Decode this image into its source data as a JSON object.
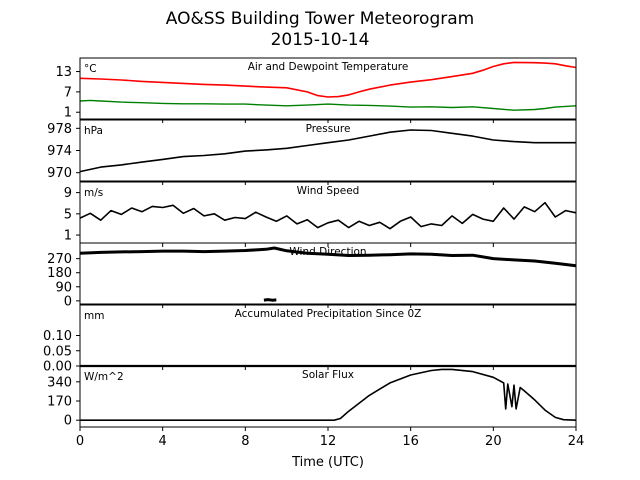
{
  "chart_data": {
    "type": "line",
    "title": "AO&SS Building Tower Meteorogram",
    "subtitle": "2015-10-14",
    "xlabel": "Time (UTC)",
    "xlim": [
      0,
      24
    ],
    "xticks": [
      0,
      4,
      8,
      12,
      16,
      20,
      24
    ],
    "panels": [
      {
        "title": "Air and Dewpoint Temperature",
        "unit": "°C",
        "ylim": [
          -1,
          17
        ],
        "yticks": [
          1,
          7,
          13
        ],
        "series": [
          {
            "color": "#ff0000",
            "width": 1.6,
            "x": [
              0,
              1,
              2,
              3,
              4,
              5,
              6,
              7,
              8,
              9,
              10,
              11,
              11.5,
              12,
              12.5,
              13,
              13.5,
              14,
              15,
              16,
              17,
              18,
              19,
              19.5,
              20,
              20.5,
              21,
              22,
              22.5,
              23,
              23.5,
              24
            ],
            "y": [
              11,
              10.8,
              10.5,
              10.1,
              9.8,
              9.5,
              9.2,
              9,
              8.7,
              8.4,
              8.2,
              7,
              5.9,
              5.5,
              5.6,
              6.1,
              7,
              7.8,
              9,
              9.9,
              10.6,
              11.5,
              12.5,
              13.4,
              14.5,
              15.3,
              15.7,
              15.6,
              15.5,
              15.3,
              14.7,
              14.2
            ]
          },
          {
            "color": "#008000",
            "width": 1.4,
            "x": [
              0,
              0.5,
              1,
              2,
              3,
              4,
              5,
              6,
              7,
              8,
              9,
              10,
              11,
              12,
              13,
              14,
              15,
              16,
              17,
              18,
              19,
              20,
              21,
              22,
              22.5,
              23,
              24
            ],
            "y": [
              4.3,
              4.5,
              4.3,
              4,
              3.8,
              3.6,
              3.5,
              3.5,
              3.4,
              3.4,
              3.1,
              2.9,
              3.1,
              3.4,
              3.1,
              3,
              2.8,
              2.5,
              2.6,
              2.4,
              2.6,
              2.1,
              1.6,
              1.8,
              2.1,
              2.5,
              2.9
            ]
          }
        ]
      },
      {
        "title": "Pressure",
        "unit": "hPa",
        "ylim": [
          968.5,
          979.5
        ],
        "yticks": [
          970,
          974,
          978
        ],
        "series": [
          {
            "color": "#000000",
            "width": 1.6,
            "x": [
              0,
              1,
              2,
              3,
              4,
              5,
              6,
              7,
              8,
              9,
              10,
              11,
              12,
              13,
              14,
              15,
              16,
              17,
              18,
              19,
              20,
              21,
              22,
              23,
              24
            ],
            "y": [
              970.2,
              971,
              971.4,
              971.9,
              972.4,
              972.9,
              973.1,
              973.4,
              973.9,
              974.1,
              974.4,
              974.9,
              975.4,
              975.9,
              976.6,
              977.3,
              977.7,
              977.6,
              977.1,
              976.6,
              975.9,
              975.6,
              975.4,
              975.4,
              975.4
            ]
          }
        ]
      },
      {
        "title": "Wind Speed",
        "unit": "m/s",
        "ylim": [
          -0.5,
          11
        ],
        "yticks": [
          1,
          5,
          9
        ],
        "series": [
          {
            "color": "#000000",
            "width": 1.6,
            "x": [
              0,
              0.5,
              1,
              1.5,
              2,
              2.5,
              3,
              3.5,
              4,
              4.5,
              5,
              5.5,
              6,
              6.5,
              7,
              7.5,
              8,
              8.5,
              9,
              9.5,
              10,
              10.5,
              11,
              11.5,
              12,
              12.5,
              13,
              13.5,
              14,
              14.5,
              15,
              15.5,
              16,
              16.5,
              17,
              17.5,
              18,
              18.5,
              19,
              19.5,
              20,
              20.5,
              21,
              21.5,
              22,
              22.5,
              23,
              23.5,
              24
            ],
            "y": [
              4.2,
              5.1,
              3.8,
              5.6,
              4.9,
              6.1,
              5.4,
              6.4,
              6.2,
              6.6,
              5.1,
              6.0,
              4.6,
              5.0,
              3.8,
              4.3,
              4.1,
              5.3,
              4.4,
              3.6,
              4.6,
              3.1,
              3.9,
              2.4,
              3.3,
              3.8,
              2.4,
              3.6,
              2.8,
              3.4,
              2.2,
              3.6,
              4.4,
              2.6,
              3.1,
              2.8,
              4.6,
              3.2,
              4.9,
              4.0,
              3.6,
              6.1,
              4.0,
              6.3,
              5.4,
              7.1,
              4.4,
              5.6,
              5.2
            ]
          }
        ]
      },
      {
        "title": "Wind Direction",
        "unit": "",
        "ylim": [
          -20,
          370
        ],
        "yticks": [
          0,
          90,
          180,
          270
        ],
        "series": [
          {
            "color": "#000000",
            "width": 3.0,
            "x": [
              0,
              1,
              2,
              3,
              4,
              5,
              6,
              7,
              8,
              9,
              9.4,
              10,
              11,
              12,
              13,
              14,
              15,
              16,
              17,
              18,
              19,
              20,
              21,
              22,
              23,
              24
            ],
            "y": [
              305,
              310,
              313,
              315,
              318,
              318,
              315,
              318,
              322,
              330,
              338,
              320,
              305,
              298,
              290,
              292,
              295,
              300,
              298,
              290,
              292,
              270,
              262,
              255,
              240,
              225
            ]
          },
          {
            "color": "#000000",
            "width": 3.0,
            "x": [
              8.9,
              9.1,
              9.3,
              9.5
            ],
            "y": [
              5,
              8,
              4,
              6
            ]
          }
        ]
      },
      {
        "title": "Accumulated Precipitation Since 0Z",
        "unit": "mm",
        "ylim": [
          0,
          0.2
        ],
        "yticks": [
          0.0,
          0.05,
          0.1
        ],
        "ytick_labels": [
          "0.00",
          "0.05",
          "0.10"
        ],
        "series": [
          {
            "color": "#000000",
            "width": 2.2,
            "x": [
              0,
              24
            ],
            "y": [
              0,
              0
            ]
          }
        ]
      },
      {
        "title": "Solar Flux",
        "unit": "W/m^2",
        "ylim": [
          -60,
          480
        ],
        "yticks": [
          0,
          170,
          340
        ],
        "series": [
          {
            "color": "#000000",
            "width": 1.6,
            "x": [
              0,
              12.3,
              12.6,
              13,
              14,
              15,
              16,
              17,
              17.5,
              18,
              19,
              20,
              20.5,
              20.6,
              20.7,
              20.9,
              21,
              21.1,
              21.3,
              21.5,
              22,
              22.5,
              23,
              23.4,
              24
            ],
            "y": [
              0,
              0,
              15,
              80,
              220,
              330,
              400,
              440,
              450,
              450,
              430,
              380,
              330,
              100,
              320,
              120,
              310,
              100,
              290,
              260,
              180,
              90,
              25,
              5,
              0
            ]
          }
        ]
      }
    ]
  }
}
